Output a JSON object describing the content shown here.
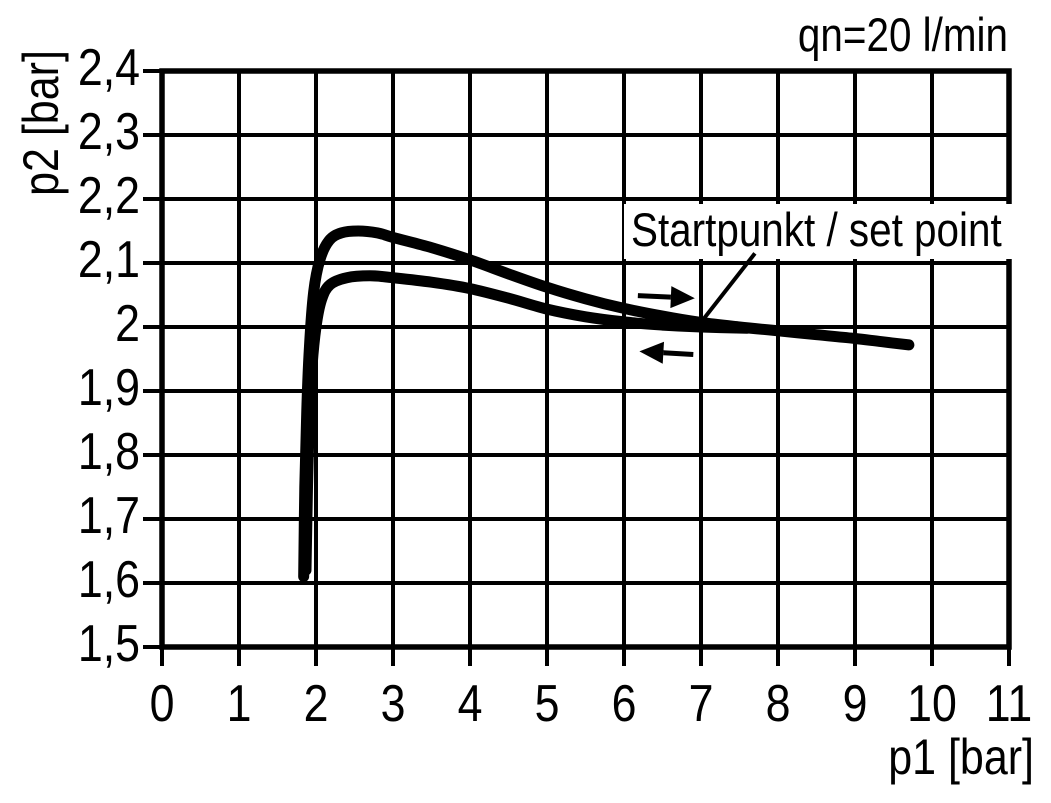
{
  "chart_data": {
    "type": "line",
    "title": "",
    "xlabel": "p1 [bar]",
    "ylabel": "p2 [bar]",
    "xlim": [
      0,
      11
    ],
    "ylim": [
      1.5,
      2.4
    ],
    "grid": true,
    "flow_annotation": "qn=20 l/min",
    "x_ticks": [
      {
        "value": 0,
        "label": "0"
      },
      {
        "value": 1,
        "label": "1"
      },
      {
        "value": 2,
        "label": "2"
      },
      {
        "value": 3,
        "label": "3"
      },
      {
        "value": 4,
        "label": "4"
      },
      {
        "value": 5,
        "label": "5"
      },
      {
        "value": 6,
        "label": "6"
      },
      {
        "value": 7,
        "label": "7"
      },
      {
        "value": 8,
        "label": "8"
      },
      {
        "value": 9,
        "label": "9"
      },
      {
        "value": 10,
        "label": "10"
      },
      {
        "value": 11,
        "label": "11"
      }
    ],
    "y_ticks": [
      {
        "value": 1.5,
        "label": "1,5"
      },
      {
        "value": 1.6,
        "label": "1,6"
      },
      {
        "value": 1.7,
        "label": "1,7"
      },
      {
        "value": 1.8,
        "label": "1,8"
      },
      {
        "value": 1.9,
        "label": "1,9"
      },
      {
        "value": 2.0,
        "label": "2"
      },
      {
        "value": 2.1,
        "label": "2,1"
      },
      {
        "value": 2.2,
        "label": "2,2"
      },
      {
        "value": 2.3,
        "label": "2,3"
      },
      {
        "value": 2.4,
        "label": "2,4"
      }
    ],
    "series": [
      {
        "id": "hysteresis_upper",
        "direction": "right",
        "points": [
          [
            1.84,
            1.61
          ],
          [
            1.855,
            1.75
          ],
          [
            1.88,
            1.87
          ],
          [
            1.915,
            1.97
          ],
          [
            1.97,
            2.055
          ],
          [
            2.05,
            2.105
          ],
          [
            2.17,
            2.135
          ],
          [
            2.33,
            2.147
          ],
          [
            2.55,
            2.15
          ],
          [
            2.8,
            2.147
          ],
          [
            3.0,
            2.14
          ],
          [
            3.5,
            2.124
          ],
          [
            4.0,
            2.105
          ],
          [
            4.5,
            2.083
          ],
          [
            5.0,
            2.062
          ],
          [
            5.5,
            2.044
          ],
          [
            6.0,
            2.029
          ],
          [
            6.5,
            2.017
          ],
          [
            7.0,
            2.007
          ],
          [
            7.5,
            2.0
          ],
          [
            8.0,
            1.994
          ],
          [
            8.5,
            1.988
          ],
          [
            9.0,
            1.982
          ],
          [
            9.35,
            1.977
          ],
          [
            9.7,
            1.972
          ]
        ]
      },
      {
        "id": "hysteresis_lower",
        "direction": "left",
        "points": [
          [
            1.87,
            1.62
          ],
          [
            1.89,
            1.75
          ],
          [
            1.915,
            1.86
          ],
          [
            1.95,
            1.94
          ],
          [
            2.0,
            2.0
          ],
          [
            2.07,
            2.042
          ],
          [
            2.18,
            2.066
          ],
          [
            2.4,
            2.077
          ],
          [
            2.7,
            2.08
          ],
          [
            3.0,
            2.077
          ],
          [
            3.5,
            2.07
          ],
          [
            4.0,
            2.06
          ],
          [
            4.5,
            2.045
          ],
          [
            5.0,
            2.028
          ],
          [
            5.5,
            2.016
          ],
          [
            6.0,
            2.008
          ],
          [
            6.5,
            2.003
          ],
          [
            7.0,
            2.0
          ],
          [
            7.6,
            1.998
          ]
        ]
      }
    ],
    "arrows": [
      {
        "direction": "right",
        "tail": [
          6.18,
          2.049
        ],
        "tip": [
          6.92,
          2.045
        ]
      },
      {
        "direction": "left",
        "tail": [
          6.9,
          1.957
        ],
        "tip": [
          6.2,
          1.962
        ]
      }
    ],
    "set_point": {
      "label": "Startpunkt / set point",
      "point": [
        7.03,
        2.012
      ],
      "leader_from": [
        7.7,
        2.115
      ]
    }
  }
}
